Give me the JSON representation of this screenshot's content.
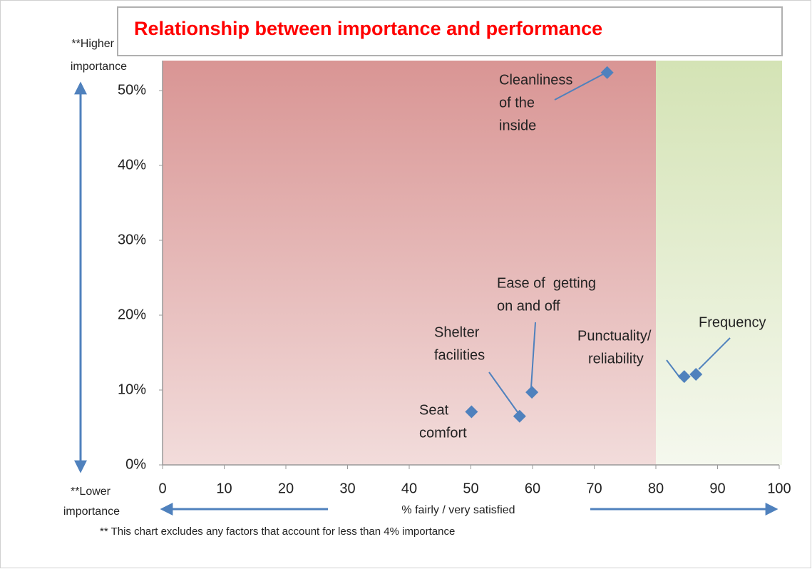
{
  "chart_data": {
    "type": "scatter",
    "title": "Relationship between importance and performance",
    "xlabel": "% fairly / very satisfied",
    "top_note": [
      "**Higher",
      "importance"
    ],
    "bottom_note": [
      "**Lower",
      "importance"
    ],
    "footnote": "** This chart excludes any factors that account for less than 4% importance",
    "xlim": [
      0,
      100
    ],
    "xticks": [
      0,
      10,
      20,
      30,
      40,
      50,
      60,
      70,
      80,
      90,
      100
    ],
    "ylim": [
      0,
      54
    ],
    "yticks": [
      {
        "value": 0,
        "label": "0%"
      },
      {
        "value": 10,
        "label": "10%"
      },
      {
        "value": 20,
        "label": "20%"
      },
      {
        "value": 30,
        "label": "30%"
      },
      {
        "value": 40,
        "label": "40%"
      },
      {
        "value": 50,
        "label": "50%"
      }
    ],
    "regions": [
      {
        "from": 0,
        "to": 80,
        "colors": [
          "#d99594",
          "#f2dcdb"
        ]
      },
      {
        "from": 80,
        "to": 100,
        "colors": [
          "#d4e3b5",
          "#f5f8ee"
        ]
      }
    ],
    "series": [
      {
        "color": "#4f81bd",
        "x": [
          72.1,
          59.9,
          57.9,
          50.1,
          84.6,
          86.5
        ],
        "values": [
          52.4,
          9.7,
          6.5,
          7.1,
          11.8,
          12.1
        ],
        "labels": [
          [
            "Cleanliness",
            "of the",
            "inside"
          ],
          [
            "Ease of  getting",
            "on and off"
          ],
          [
            "Shelter",
            "facilities"
          ],
          [
            "Seat",
            "comfort"
          ],
          [
            "Punctuality/",
            "reliability"
          ],
          [
            "Frequency"
          ]
        ]
      }
    ]
  }
}
